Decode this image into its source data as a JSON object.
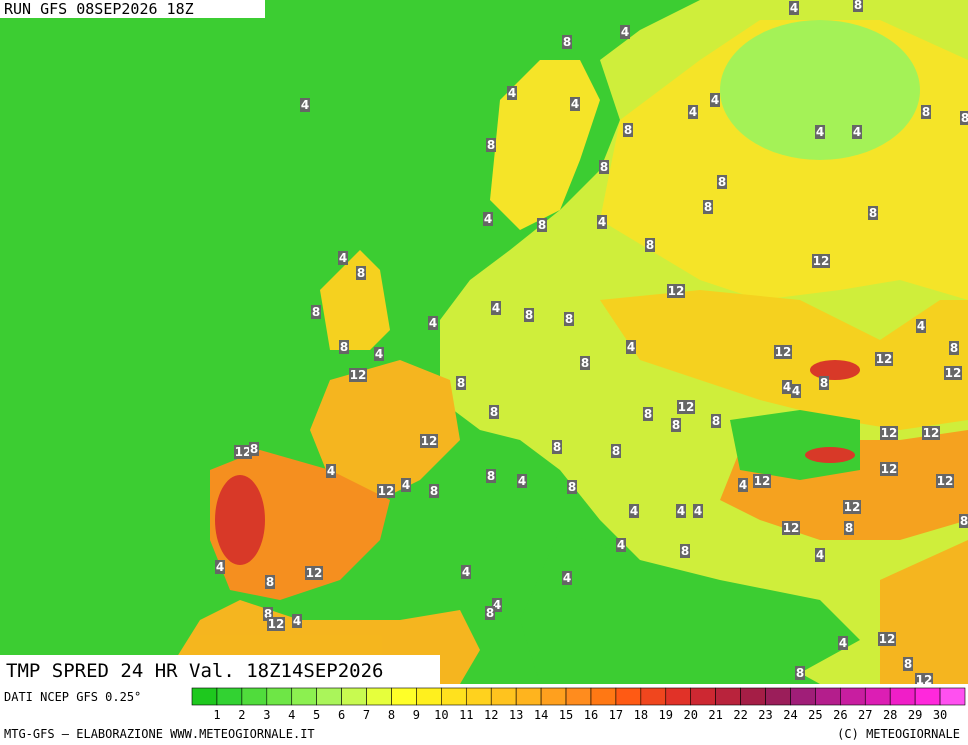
{
  "header": {
    "run": "RUN GFS 08SEP2026 18Z",
    "title": "TMP SPRED 24 HR Val. 18Z14SEP2026"
  },
  "footer": {
    "source": "DATI NCEP GFS 0.25°",
    "credit": "MTG-GFS — ELABORAZIONE WWW.METEOGIORNALE.IT",
    "copyright": "(C) METEOGIORNALE"
  },
  "legend": {
    "levels": [
      1,
      2,
      3,
      4,
      5,
      6,
      7,
      8,
      9,
      10,
      11,
      12,
      13,
      14,
      15,
      16,
      17,
      18,
      19,
      20,
      21,
      22,
      23,
      24,
      25,
      26,
      27,
      28,
      29,
      30
    ],
    "colors": [
      "#1ec81e",
      "#32d232",
      "#50dc3c",
      "#6ee646",
      "#8cf050",
      "#aaf55a",
      "#c8fa50",
      "#e6ff3c",
      "#ffff28",
      "#fff01e",
      "#ffe11e",
      "#ffd21e",
      "#ffc31e",
      "#ffb41e",
      "#ffa01e",
      "#ff8c1e",
      "#ff7814",
      "#ff5a14",
      "#f0461e",
      "#e13228",
      "#cd2832",
      "#b9233c",
      "#a51e46",
      "#9b1e5a",
      "#a01e78",
      "#b41e8c",
      "#c81ea0",
      "#dc1eb4",
      "#f01ec8",
      "#ff28dc",
      "#ff50f0"
    ]
  },
  "map": {
    "labels": [
      4,
      4,
      4,
      8,
      4,
      4,
      4,
      4,
      8,
      4,
      4,
      8,
      8,
      8,
      8,
      8,
      8,
      8,
      8,
      4,
      8,
      4,
      8,
      4,
      8,
      12,
      12,
      4,
      8,
      8,
      8,
      4,
      4,
      8,
      4,
      4,
      12,
      12,
      8,
      12,
      8,
      8,
      8,
      4,
      4,
      12,
      12,
      8,
      8,
      8,
      8,
      12,
      8,
      8,
      12,
      12,
      12,
      8,
      4,
      8,
      4,
      4,
      12,
      12,
      12,
      12,
      4,
      8,
      8,
      12,
      4,
      4,
      4,
      8,
      12,
      8,
      4,
      8,
      4,
      4,
      12,
      4,
      8,
      4,
      4,
      8,
      8,
      12,
      4,
      4,
      12,
      8,
      8,
      12
    ]
  }
}
